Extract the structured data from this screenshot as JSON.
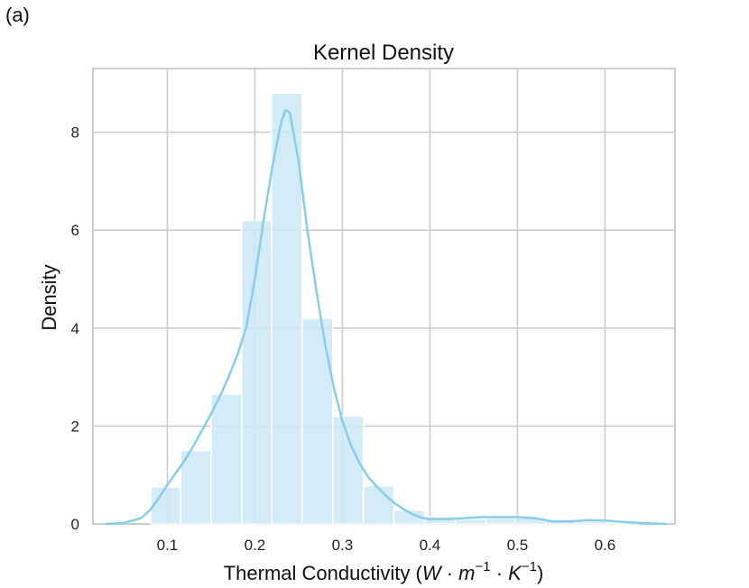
{
  "panel_label": "(a)",
  "chart_data": {
    "type": "histogram+kde",
    "title": "Kernel Density",
    "xlabel_main": "Thermal Conductivity (",
    "xlabel_math": {
      "W": "W",
      "dot1": " · ",
      "m": "m",
      "exp_m": "−1",
      "dot2": " · ",
      "K": "K",
      "exp_K": "−1",
      "close": ")"
    },
    "ylabel": "Density",
    "xlim": [
      0.015,
      0.68
    ],
    "ylim": [
      0,
      9.3
    ],
    "xticks": [
      0.1,
      0.2,
      0.3,
      0.4,
      0.5,
      0.6
    ],
    "xtick_labels": [
      "0.1",
      "0.2",
      "0.3",
      "0.4",
      "0.5",
      "0.6"
    ],
    "yticks": [
      0,
      2,
      4,
      6,
      8
    ],
    "ytick_labels": [
      "0",
      "2",
      "4",
      "6",
      "8"
    ],
    "grid": true,
    "bar_color": "#cde9f6",
    "line_color": "#87ceeb",
    "grid_color": "#cccccc",
    "bins": [
      {
        "x0": 0.081,
        "x1": 0.115,
        "value": 0.75
      },
      {
        "x0": 0.115,
        "x1": 0.15,
        "value": 1.5
      },
      {
        "x0": 0.15,
        "x1": 0.185,
        "value": 2.65
      },
      {
        "x0": 0.185,
        "x1": 0.219,
        "value": 6.2
      },
      {
        "x0": 0.219,
        "x1": 0.254,
        "value": 8.8
      },
      {
        "x0": 0.254,
        "x1": 0.289,
        "value": 4.2
      },
      {
        "x0": 0.289,
        "x1": 0.324,
        "value": 2.2
      },
      {
        "x0": 0.324,
        "x1": 0.359,
        "value": 0.78
      },
      {
        "x0": 0.359,
        "x1": 0.394,
        "value": 0.28
      },
      {
        "x0": 0.394,
        "x1": 0.429,
        "value": 0.15
      },
      {
        "x0": 0.429,
        "x1": 0.464,
        "value": 0.1
      },
      {
        "x0": 0.464,
        "x1": 0.498,
        "value": 0.12
      },
      {
        "x0": 0.498,
        "x1": 0.533,
        "value": 0.13
      },
      {
        "x0": 0.533,
        "x1": 0.568,
        "value": 0.1
      },
      {
        "x0": 0.568,
        "x1": 0.603,
        "value": 0.05
      },
      {
        "x0": 0.603,
        "x1": 0.638,
        "value": 0.03
      }
    ],
    "kde": {
      "x": [
        0.03,
        0.05,
        0.07,
        0.08,
        0.09,
        0.1,
        0.11,
        0.12,
        0.13,
        0.14,
        0.15,
        0.16,
        0.17,
        0.18,
        0.19,
        0.2,
        0.21,
        0.22,
        0.23,
        0.235,
        0.24,
        0.25,
        0.26,
        0.27,
        0.28,
        0.29,
        0.3,
        0.31,
        0.32,
        0.33,
        0.34,
        0.35,
        0.36,
        0.37,
        0.38,
        0.39,
        0.4,
        0.42,
        0.44,
        0.46,
        0.48,
        0.5,
        0.52,
        0.54,
        0.56,
        0.58,
        0.6,
        0.62,
        0.64,
        0.67
      ],
      "y": [
        0.0,
        0.02,
        0.12,
        0.28,
        0.52,
        0.8,
        1.05,
        1.3,
        1.6,
        1.92,
        2.25,
        2.6,
        3.0,
        3.45,
        4.0,
        5.0,
        6.2,
        7.3,
        8.2,
        8.45,
        8.4,
        7.4,
        6.0,
        4.8,
        3.7,
        2.8,
        2.1,
        1.6,
        1.22,
        0.95,
        0.75,
        0.57,
        0.42,
        0.3,
        0.2,
        0.13,
        0.1,
        0.1,
        0.12,
        0.14,
        0.14,
        0.14,
        0.12,
        0.05,
        0.05,
        0.08,
        0.07,
        0.04,
        0.02,
        0.0
      ]
    }
  }
}
